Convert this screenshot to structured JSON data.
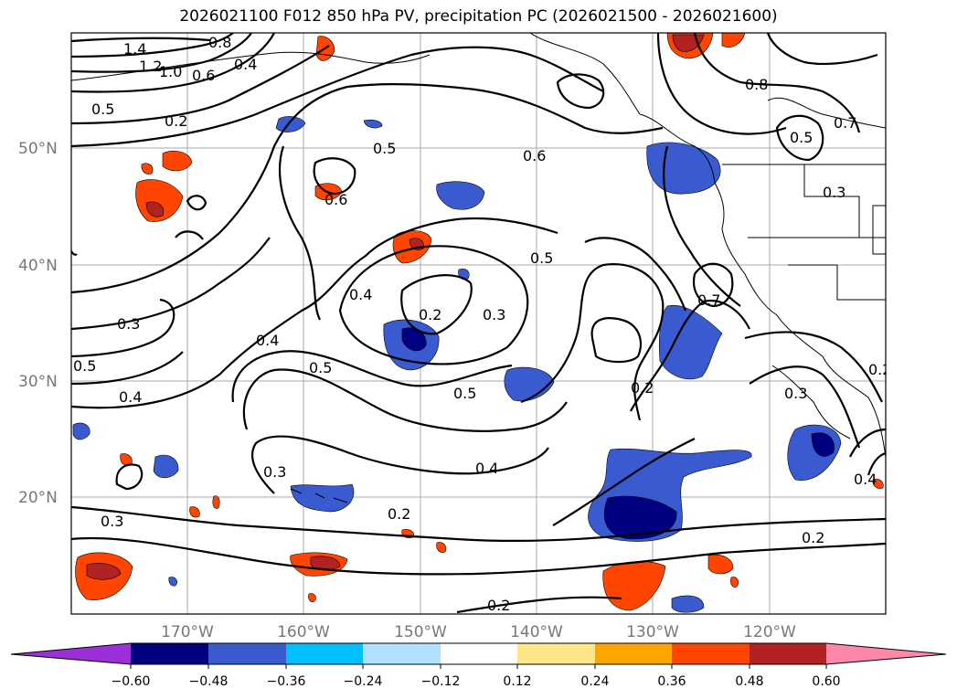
{
  "title": "2026021100 F012 850 hPa PV, precipitation PC (2026021500 - 2026021600)",
  "map": {
    "lat_labels": [
      "50°N",
      "40°N",
      "30°N",
      "20°N"
    ],
    "lon_labels": [
      "170°W",
      "160°W",
      "150°W",
      "140°W",
      "130°W",
      "120°W"
    ],
    "contour_labels": [
      "1.4",
      "1.2",
      "1.0",
      "0.8",
      "0.6",
      "0.4",
      "0.5",
      "0.2",
      "0.5",
      "0.6",
      "0.6",
      "0.5",
      "0.4",
      "0.2",
      "0.3",
      "0.5",
      "0.3",
      "0.4",
      "0.5",
      "0.5",
      "0.4",
      "0.4",
      "0.2",
      "0.7",
      "0.8",
      "0.7",
      "0.5",
      "0.3",
      "0.3",
      "0.2",
      "0.4",
      "0.2",
      "0.2",
      "0.2",
      "0.3",
      "0.3"
    ]
  },
  "colorbar": {
    "ticks": [
      "−0.60",
      "−0.48",
      "−0.36",
      "−0.24",
      "−0.12",
      "0.12",
      "0.24",
      "0.36",
      "0.48",
      "0.60"
    ],
    "colors": [
      "#9b30d9",
      "#000080",
      "#3a5bcf",
      "#00bfff",
      "#b0e0ff",
      "#ffffff",
      "#fde68a",
      "#ffa500",
      "#ff4500",
      "#b22222",
      "#ff88aa"
    ]
  }
}
